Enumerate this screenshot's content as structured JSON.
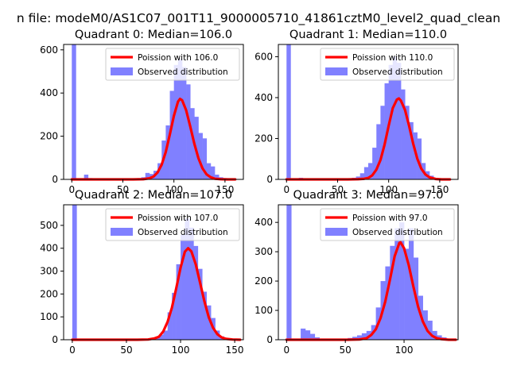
{
  "suptitle": "n file: modeM0/AS1C07_001T11_9000005710_41861cztM0_level2_quad_clean",
  "colors": {
    "observed": "#8080ff",
    "poisson": "#ff0000",
    "legend_border": "#cccccc"
  },
  "chart_data": [
    {
      "type": "bar",
      "title": "Quadrant 0: Median=106.0",
      "median": 106,
      "xlim": [
        -8,
        168
      ],
      "ylim": [
        0,
        625
      ],
      "xticks": [
        0,
        50,
        100,
        150
      ],
      "yticks": [
        0,
        200,
        400,
        600
      ],
      "bin_width": 4,
      "legend": {
        "poisson": "Poission with 106.0",
        "observed": "Observed distribution",
        "placement": "upper right"
      },
      "histogram": {
        "x": [
          0,
          12,
          16,
          20,
          24,
          28,
          32,
          36,
          40,
          44,
          48,
          52,
          56,
          60,
          64,
          68,
          72,
          76,
          80,
          84,
          88,
          92,
          96,
          100,
          104,
          108,
          112,
          116,
          120,
          124,
          128,
          132,
          136,
          140,
          144,
          148,
          152,
          156,
          160
        ],
        "values": [
          630,
          22,
          6,
          4,
          3,
          2,
          2,
          2,
          2,
          2,
          2,
          2,
          3,
          4,
          6,
          10,
          30,
          25,
          40,
          75,
          180,
          250,
          410,
          530,
          560,
          520,
          440,
          330,
          290,
          215,
          190,
          75,
          60,
          22,
          10,
          6,
          3,
          2,
          1
        ]
      },
      "poisson_curve": {
        "x": [
          0,
          60,
          70,
          76,
          80,
          84,
          88,
          92,
          96,
          100,
          104,
          106,
          108,
          112,
          116,
          120,
          124,
          128,
          132,
          136,
          140,
          146,
          152,
          160
        ],
        "y": [
          0,
          0,
          1,
          5,
          13,
          32,
          68,
          127,
          208,
          295,
          360,
          373,
          367,
          320,
          245,
          165,
          98,
          51,
          23,
          10,
          3,
          1,
          0,
          0
        ]
      }
    },
    {
      "type": "bar",
      "title": "Quadrant 1: Median=110.0",
      "median": 110,
      "xlim": [
        -8,
        168
      ],
      "ylim": [
        0,
        660
      ],
      "xticks": [
        0,
        50,
        100,
        150
      ],
      "yticks": [
        0,
        200,
        400,
        600
      ],
      "bin_width": 4,
      "legend": {
        "poisson": "Poission with 110.0",
        "observed": "Observed distribution",
        "placement": "upper right"
      },
      "histogram": {
        "x": [
          0,
          12,
          16,
          20,
          24,
          28,
          32,
          36,
          40,
          44,
          48,
          52,
          56,
          60,
          64,
          68,
          72,
          76,
          80,
          84,
          88,
          92,
          96,
          100,
          104,
          108,
          112,
          116,
          120,
          124,
          128,
          132,
          136,
          140,
          144,
          148,
          152,
          156,
          160
        ],
        "values": [
          660,
          8,
          4,
          3,
          2,
          2,
          2,
          2,
          2,
          2,
          2,
          2,
          3,
          4,
          8,
          14,
          30,
          60,
          80,
          155,
          270,
          360,
          470,
          560,
          600,
          570,
          440,
          360,
          280,
          230,
          200,
          80,
          40,
          18,
          8,
          4,
          2,
          1,
          1
        ]
      },
      "poisson_curve": {
        "x": [
          0,
          60,
          70,
          76,
          80,
          84,
          88,
          92,
          96,
          100,
          104,
          108,
          110,
          112,
          116,
          120,
          124,
          128,
          132,
          136,
          140,
          146,
          152,
          160
        ],
        "y": [
          0,
          0,
          1,
          3,
          7,
          20,
          48,
          95,
          170,
          262,
          348,
          390,
          396,
          385,
          340,
          262,
          175,
          102,
          52,
          24,
          10,
          2,
          0,
          0
        ]
      }
    },
    {
      "type": "bar",
      "title": "Quadrant 2: Median=107.0",
      "median": 107,
      "xlim": [
        -8,
        158
      ],
      "ylim": [
        0,
        590
      ],
      "xticks": [
        0,
        50,
        100,
        150
      ],
      "yticks": [
        0,
        100,
        200,
        300,
        400,
        500
      ],
      "bin_width": 4,
      "legend": {
        "poisson": "Poission with 107.0",
        "observed": "Observed distribution",
        "placement": "upper right"
      },
      "histogram": {
        "x": [
          0,
          12,
          16,
          20,
          24,
          28,
          32,
          36,
          40,
          44,
          48,
          52,
          56,
          60,
          64,
          68,
          72,
          76,
          80,
          84,
          88,
          92,
          96,
          100,
          104,
          108,
          112,
          116,
          120,
          124,
          128,
          132,
          136,
          140,
          144,
          148
        ],
        "values": [
          590,
          3,
          2,
          2,
          2,
          2,
          2,
          2,
          2,
          2,
          2,
          2,
          2,
          2,
          3,
          4,
          6,
          10,
          22,
          40,
          120,
          205,
          330,
          460,
          530,
          490,
          410,
          310,
          210,
          150,
          95,
          40,
          15,
          8,
          3,
          2
        ]
      },
      "poisson_curve": {
        "x": [
          0,
          60,
          70,
          76,
          80,
          84,
          88,
          92,
          96,
          100,
          104,
          107,
          110,
          114,
          118,
          122,
          126,
          130,
          134,
          138,
          142,
          148,
          155
        ],
        "y": [
          0,
          0,
          1,
          6,
          13,
          36,
          78,
          140,
          225,
          315,
          385,
          400,
          386,
          330,
          250,
          168,
          99,
          52,
          24,
          10,
          4,
          1,
          0
        ]
      }
    },
    {
      "type": "bar",
      "title": "Quadrant 3: Median=97.0",
      "median": 97,
      "xlim": [
        -7,
        146
      ],
      "ylim": [
        0,
        460
      ],
      "xticks": [
        0,
        50,
        100
      ],
      "yticks": [
        0,
        100,
        200,
        300,
        400
      ],
      "bin_width": 4,
      "legend": {
        "poisson": "Poission with 97.0",
        "observed": "Observed distribution",
        "placement": "upper right"
      },
      "histogram": {
        "x": [
          0,
          12,
          16,
          20,
          24,
          28,
          32,
          36,
          40,
          44,
          48,
          52,
          56,
          60,
          64,
          68,
          72,
          76,
          80,
          84,
          88,
          92,
          96,
          100,
          104,
          108,
          112,
          116,
          120,
          124,
          128,
          132,
          136
        ],
        "values": [
          460,
          38,
          32,
          20,
          8,
          4,
          3,
          3,
          3,
          3,
          4,
          6,
          10,
          15,
          22,
          30,
          50,
          110,
          200,
          250,
          320,
          380,
          400,
          310,
          380,
          280,
          150,
          100,
          65,
          30,
          15,
          8,
          3
        ]
      },
      "poisson_curve": {
        "x": [
          0,
          52,
          62,
          68,
          72,
          76,
          80,
          84,
          88,
          92,
          96,
          97,
          100,
          104,
          108,
          112,
          116,
          120,
          124,
          128,
          132,
          138,
          144
        ],
        "y": [
          0,
          0,
          1,
          5,
          16,
          36,
          74,
          130,
          205,
          285,
          330,
          332,
          312,
          254,
          180,
          112,
          62,
          30,
          13,
          5,
          2,
          0,
          0
        ]
      }
    }
  ]
}
